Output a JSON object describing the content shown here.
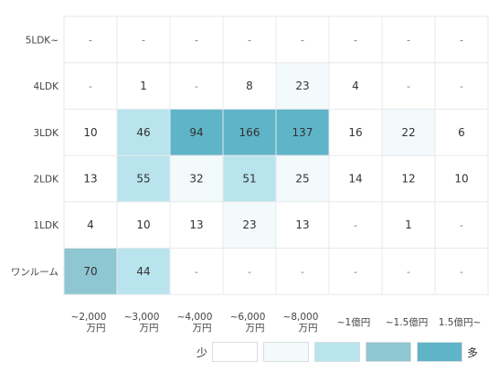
{
  "chart_data": {
    "type": "heatmap",
    "title": "",
    "xlabel": "",
    "ylabel": "",
    "rows": [
      "5LDK~",
      "4LDK",
      "3LDK",
      "2LDK",
      "1LDK",
      "ワンルーム"
    ],
    "columns": [
      [
        "~2,000",
        "万円"
      ],
      [
        "~3,000",
        "万円"
      ],
      [
        "~4,000",
        "万円"
      ],
      [
        "~6,000",
        "万円"
      ],
      [
        "~8,000",
        "万円"
      ],
      [
        "~1億円"
      ],
      [
        "~1.5億円"
      ],
      [
        "1.5億円~"
      ]
    ],
    "values": [
      [
        null,
        null,
        null,
        null,
        null,
        null,
        null,
        null
      ],
      [
        null,
        1,
        null,
        8,
        23,
        4,
        null,
        null
      ],
      [
        10,
        46,
        94,
        166,
        137,
        16,
        22,
        6
      ],
      [
        13,
        55,
        32,
        51,
        25,
        14,
        12,
        10
      ],
      [
        4,
        10,
        13,
        23,
        13,
        null,
        1,
        null
      ],
      [
        70,
        44,
        null,
        null,
        null,
        null,
        null,
        null
      ]
    ],
    "cell_levels": [
      [
        0,
        0,
        0,
        0,
        0,
        0,
        0,
        0
      ],
      [
        0,
        0,
        0,
        0,
        1,
        0,
        0,
        0
      ],
      [
        0,
        2,
        4,
        4,
        4,
        0,
        1,
        0
      ],
      [
        0,
        2,
        1,
        2,
        1,
        0,
        0,
        0
      ],
      [
        0,
        0,
        0,
        1,
        0,
        0,
        0,
        0
      ],
      [
        3,
        2,
        0,
        0,
        0,
        0,
        0,
        0
      ]
    ],
    "missing_label": "-",
    "color_scale": [
      "#ffffff",
      "#f2fafc",
      "#b9e4ee",
      "#8ec6d2",
      "#5fb4c8"
    ],
    "legend": {
      "low_label": "少",
      "high_label": "多"
    },
    "grid_color": "#e6e9eb",
    "grid": true
  }
}
